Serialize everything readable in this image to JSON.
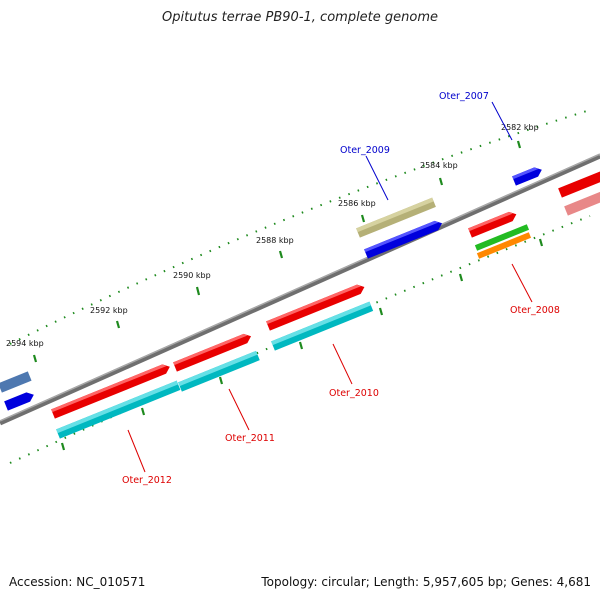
{
  "title": "Opitutus terrae PB90-1, complete genome",
  "footer": {
    "accession": "Accession: NC_010571",
    "summary": "Topology: circular; Length: 5,957,605 bp; Genes: 4,681"
  },
  "colors": {
    "backbone": "#777777",
    "tick": "#1e8a1e",
    "label_cog_red": "#dd0000",
    "label_cog_blue": "#0000cc"
  },
  "position_labels": [
    "2582 kbp",
    "2584 kbp",
    "2586 kbp",
    "2588 kbp",
    "2590 kbp",
    "2592 kbp",
    "2594 kbp"
  ],
  "gene_labels": [
    {
      "text": "Oter_2007",
      "color": "#0000cc"
    },
    {
      "text": "Oter_2009",
      "color": "#0000cc"
    },
    {
      "text": "Oter_2008",
      "color": "#dd0000"
    },
    {
      "text": "Oter_2010",
      "color": "#dd0000"
    },
    {
      "text": "Oter_2011",
      "color": "#dd0000"
    },
    {
      "text": "Oter_2012",
      "color": "#dd0000"
    }
  ]
}
